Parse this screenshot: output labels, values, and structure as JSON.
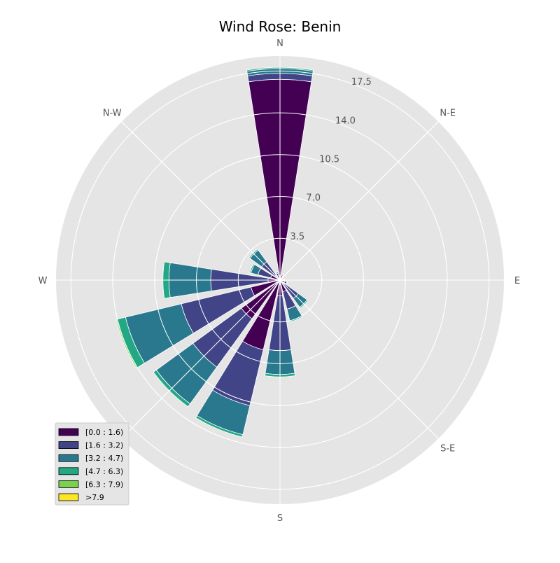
{
  "chart_data": {
    "type": "windrose",
    "title": "Wind Rose: Benin",
    "directions": [
      "N",
      "N-E",
      "E",
      "S-E",
      "S",
      "W",
      "N-W"
    ],
    "direction_labels": [
      {
        "key": "N",
        "angle": 0
      },
      {
        "key": "N-E",
        "angle": 45
      },
      {
        "key": "E",
        "angle": 90
      },
      {
        "key": "S-E",
        "angle": 135
      },
      {
        "key": "S",
        "angle": 180
      },
      {
        "key": "W",
        "angle": 270
      },
      {
        "key": "N-W",
        "angle": 315
      }
    ],
    "radial_ticks": [
      "3.5",
      "7.0",
      "10.5",
      "14.0",
      "17.5"
    ],
    "rmax": 18.75,
    "sector_width_deg": 18,
    "speed_bins": [
      {
        "label": "[0.0 : 1.6)",
        "color": "#440154"
      },
      {
        "label": "[1.6 : 3.2)",
        "color": "#414487"
      },
      {
        "label": "[3.2 : 4.7)",
        "color": "#2a788e"
      },
      {
        "label": "[4.7 : 6.3)",
        "color": "#22a884"
      },
      {
        "label": "[6.3 : 7.9)",
        "color": "#7ad151"
      },
      {
        "label": ">7.9",
        "color": "#fde725"
      }
    ],
    "sectors": [
      {
        "angle": 0,
        "values": [
          16.8,
          0.5,
          0.4,
          0.1,
          0.0,
          0.0
        ]
      },
      {
        "angle": 22.5,
        "values": [
          0.4,
          0.1,
          0.05,
          0.0,
          0.0,
          0.0
        ]
      },
      {
        "angle": 45,
        "values": [
          0.1,
          0.05,
          0.0,
          0.0,
          0.0,
          0.0
        ]
      },
      {
        "angle": 67.5,
        "values": [
          0.1,
          0.05,
          0.0,
          0.0,
          0.0,
          0.0
        ]
      },
      {
        "angle": 90,
        "values": [
          0.3,
          0.1,
          0.0,
          0.0,
          0.0,
          0.0
        ]
      },
      {
        "angle": 112.5,
        "values": [
          0.4,
          0.2,
          0.05,
          0.0,
          0.0,
          0.0
        ]
      },
      {
        "angle": 135,
        "values": [
          0.4,
          1.5,
          0.9,
          0.1,
          0.0,
          0.0
        ]
      },
      {
        "angle": 157.5,
        "values": [
          1.0,
          1.5,
          1.0,
          0.1,
          0.0,
          0.0
        ]
      },
      {
        "angle": 180,
        "values": [
          1.3,
          4.6,
          2.0,
          0.2,
          0.0,
          0.0
        ]
      },
      {
        "angle": 202.5,
        "values": [
          6.0,
          4.8,
          2.5,
          0.2,
          0.0,
          0.0
        ]
      },
      {
        "angle": 225,
        "values": [
          4.0,
          5.0,
          3.8,
          0.3,
          0.0,
          0.0
        ]
      },
      {
        "angle": 247.5,
        "values": [
          2.5,
          6.0,
          4.8,
          0.7,
          0.1,
          0.0
        ]
      },
      {
        "angle": 270,
        "values": [
          1.0,
          4.8,
          3.5,
          0.5,
          0.0,
          0.0
        ]
      },
      {
        "angle": 292.5,
        "values": [
          0.8,
          1.1,
          0.6,
          0.1,
          0.0,
          0.0
        ]
      },
      {
        "angle": 315,
        "values": [
          0.5,
          1.4,
          1.2,
          0.1,
          0.0,
          0.0
        ]
      },
      {
        "angle": 337.5,
        "values": [
          0.4,
          0.2,
          0.1,
          0.05,
          0.0,
          0.0
        ]
      }
    ],
    "grid": true,
    "legend_position": "lower-left"
  }
}
